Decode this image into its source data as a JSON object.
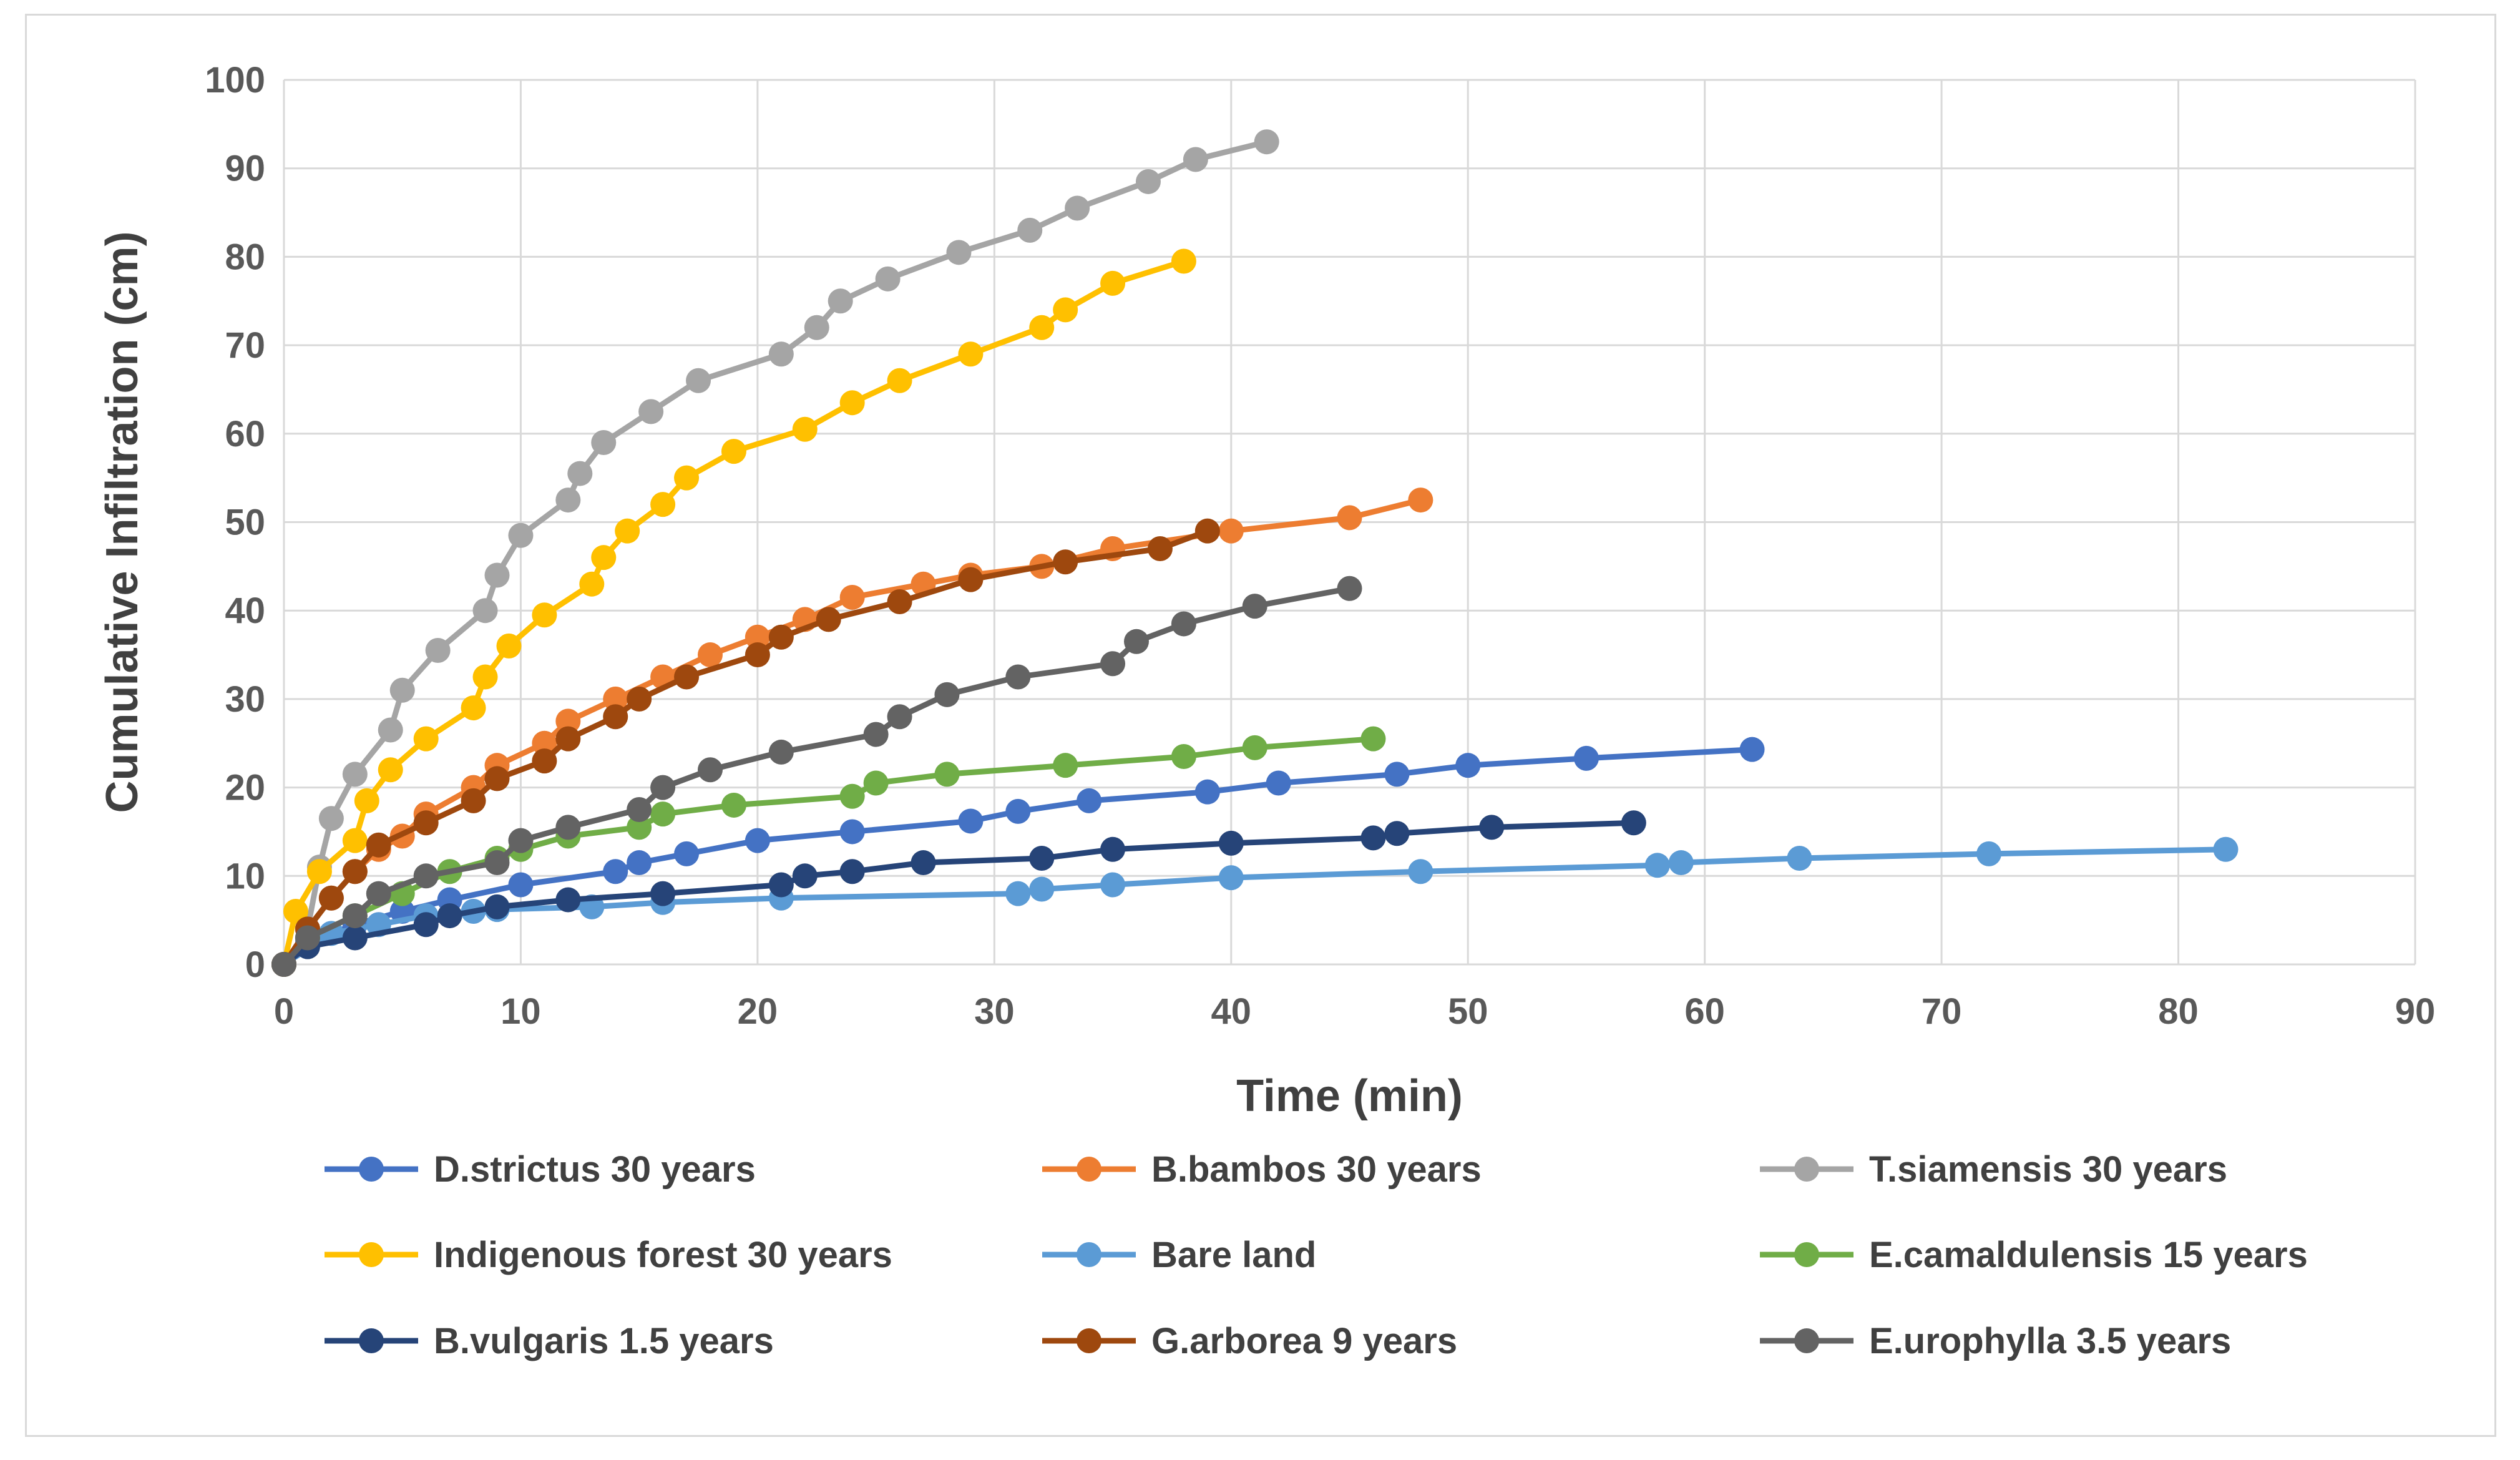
{
  "chart_data": {
    "type": "line",
    "title": "",
    "xlabel": "Time (min)",
    "ylabel": "Cumulative Infiltration (cm)",
    "xlim": [
      0,
      90
    ],
    "ylim": [
      0,
      100
    ],
    "xticks": [
      0,
      10,
      20,
      30,
      40,
      50,
      60,
      70,
      80,
      90
    ],
    "yticks": [
      0,
      10,
      20,
      30,
      40,
      50,
      60,
      70,
      80,
      90,
      100
    ],
    "grid": true,
    "legend_position": "bottom",
    "series": [
      {
        "name": "D.strictus 30 years",
        "color": "#4472C4",
        "x": [
          0,
          1,
          3,
          5,
          7,
          10,
          14,
          15,
          17,
          20,
          24,
          29,
          31,
          34,
          39,
          42,
          47,
          50,
          55,
          62
        ],
        "y": [
          0,
          2.5,
          4.5,
          6,
          7.3,
          9,
          10.5,
          11.5,
          12.5,
          14,
          15,
          16.2,
          17.3,
          18.5,
          19.5,
          20.5,
          21.5,
          22.5,
          23.3,
          24.3
        ]
      },
      {
        "name": "B.bambos 30 years",
        "color": "#ED7D31",
        "x": [
          0,
          1,
          2,
          3,
          4,
          5,
          6,
          8,
          9,
          11,
          12,
          14,
          16,
          18,
          20,
          22,
          24,
          27,
          29,
          32,
          35,
          40,
          45,
          48
        ],
        "y": [
          0,
          4,
          7.5,
          10.5,
          13,
          14.5,
          17,
          20,
          22.5,
          25,
          27.5,
          30,
          32.5,
          35,
          37,
          39,
          41.5,
          43,
          44,
          45,
          47,
          49,
          50.5,
          52.5
        ]
      },
      {
        "name": "T.siamensis 30 years",
        "color": "#A5A5A5",
        "x": [
          0,
          1,
          1.5,
          2,
          3,
          4.5,
          5,
          6.5,
          8.5,
          9,
          10,
          12,
          12.5,
          13.5,
          15.5,
          17.5,
          21,
          22.5,
          23.5,
          25.5,
          28.5,
          31.5,
          33.5,
          36.5,
          38.5,
          41.5
        ],
        "y": [
          0,
          4,
          11,
          16.5,
          21.5,
          26.5,
          31,
          35.5,
          40,
          44,
          48.5,
          52.5,
          55.5,
          59,
          62.5,
          66,
          69,
          72,
          75,
          77.5,
          80.5,
          83,
          85.5,
          88.5,
          91,
          93
        ]
      },
      {
        "name": "Indigenous forest 30 years",
        "color": "#FFC000",
        "x": [
          0,
          0.5,
          1.5,
          3,
          3.5,
          4.5,
          6,
          8,
          8.5,
          9.5,
          11,
          13,
          13.5,
          14.5,
          16,
          17,
          19,
          22,
          24,
          26,
          29,
          32,
          33,
          35,
          38
        ],
        "y": [
          0,
          6,
          10.5,
          14,
          18.5,
          22,
          25.5,
          29,
          32.5,
          36,
          39.5,
          43,
          46,
          49,
          52,
          55,
          58,
          60.5,
          63.5,
          66,
          69,
          72,
          74,
          77,
          79.5
        ]
      },
      {
        "name": "Bare land",
        "color": "#5B9BD5",
        "x": [
          0,
          2,
          4,
          6,
          8,
          9,
          13,
          16,
          21,
          31,
          32,
          35,
          40,
          48,
          58,
          59,
          64,
          72,
          82
        ],
        "y": [
          0,
          3.5,
          4.5,
          5.5,
          6,
          6.2,
          6.5,
          7,
          7.5,
          8,
          8.5,
          9,
          9.8,
          10.5,
          11.2,
          11.5,
          12,
          12.5,
          13
        ]
      },
      {
        "name": "E.camaldulensis 15 years",
        "color": "#70AD47",
        "x": [
          0,
          1,
          3,
          5,
          7,
          9,
          10,
          12,
          15,
          16,
          19,
          24,
          25,
          28,
          33,
          38,
          41,
          46
        ],
        "y": [
          0,
          3,
          5.5,
          8,
          10.5,
          12,
          13,
          14.5,
          15.5,
          17,
          18,
          19,
          20.5,
          21.5,
          22.5,
          23.5,
          24.5,
          25.5
        ]
      },
      {
        "name": "B.vulgaris 1.5 years",
        "color": "#264478",
        "x": [
          0,
          1,
          3,
          6,
          7,
          9,
          12,
          16,
          21,
          22,
          24,
          27,
          32,
          35,
          40,
          46,
          47,
          51,
          57
        ],
        "y": [
          0,
          2,
          3,
          4.5,
          5.5,
          6.5,
          7.3,
          8,
          9,
          10,
          10.5,
          11.5,
          12,
          13,
          13.7,
          14.3,
          14.8,
          15.5,
          16
        ]
      },
      {
        "name": "G.arborea 9 years",
        "color": "#9E480E",
        "x": [
          0,
          1,
          2,
          3,
          4,
          6,
          8,
          9,
          11,
          12,
          14,
          15,
          17,
          20,
          21,
          23,
          26,
          29,
          33,
          37,
          39
        ],
        "y": [
          0,
          4,
          7.5,
          10.5,
          13.5,
          16,
          18.5,
          21,
          23,
          25.5,
          28,
          30,
          32.5,
          35,
          37,
          39,
          41,
          43.5,
          45.5,
          47,
          49
        ]
      },
      {
        "name": "E.urophylla 3.5 years",
        "color": "#636363",
        "x": [
          0,
          1,
          3,
          4,
          6,
          9,
          10,
          12,
          15,
          16,
          18,
          21,
          25,
          26,
          28,
          31,
          35,
          36,
          38,
          41,
          45
        ],
        "y": [
          0,
          3,
          5.5,
          8,
          10,
          11.5,
          14,
          15.5,
          17.5,
          20,
          22,
          24,
          26,
          28,
          30.5,
          32.5,
          34,
          36.5,
          38.5,
          40.5,
          42.5
        ]
      }
    ]
  }
}
